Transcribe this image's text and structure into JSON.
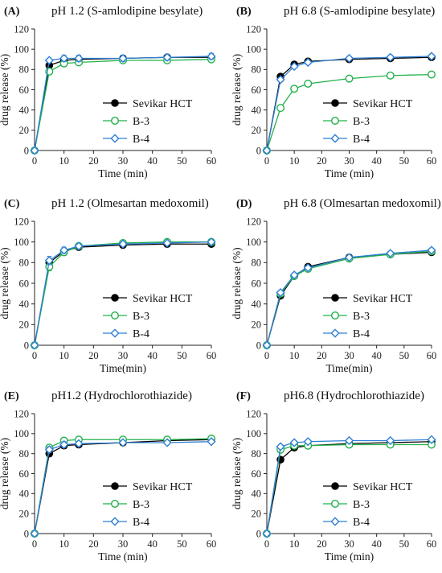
{
  "chart_data": [
    {
      "id": "A",
      "type": "line",
      "panel_label": "(A)",
      "title": "pH 1.2 (S-amlodipine besylate)",
      "xlabel": "Time (min)",
      "ylabel": "drug release (%)",
      "xlim": [
        0,
        60
      ],
      "ylim": [
        0,
        120
      ],
      "xticks": [
        0,
        10,
        20,
        30,
        40,
        50,
        60
      ],
      "yticks": [
        0,
        20,
        40,
        60,
        80,
        100,
        120
      ],
      "x": [
        0,
        5,
        10,
        15,
        30,
        45,
        60
      ],
      "legend_position": "bottom-right",
      "series": [
        {
          "name": "Sevikar HCT",
          "values": [
            0,
            84,
            89,
            90,
            91,
            92,
            92
          ],
          "err": [
            0,
            3,
            3,
            3,
            3,
            3,
            3
          ]
        },
        {
          "name": "B-3",
          "values": [
            0,
            78,
            86,
            87,
            89,
            89,
            90
          ],
          "err": [
            0,
            3,
            3,
            2,
            2,
            2,
            2
          ]
        },
        {
          "name": "B-4",
          "values": [
            0,
            89,
            91,
            91,
            91,
            92,
            93
          ],
          "err": [
            0,
            2,
            3,
            3,
            3,
            3,
            3
          ]
        }
      ]
    },
    {
      "id": "B",
      "type": "line",
      "panel_label": "(B)",
      "title": "pH 6.8 (S-amlodipine besylate)",
      "xlabel": "Time (min)",
      "ylabel": "drug release (%)",
      "xlim": [
        0,
        60
      ],
      "ylim": [
        0,
        120
      ],
      "xticks": [
        0,
        10,
        20,
        30,
        40,
        50,
        60
      ],
      "yticks": [
        0,
        20,
        40,
        60,
        80,
        100,
        120
      ],
      "x": [
        0,
        5,
        10,
        15,
        30,
        45,
        60
      ],
      "legend_position": "bottom-right",
      "series": [
        {
          "name": "Sevikar HCT",
          "values": [
            0,
            73,
            85,
            88,
            90,
            91,
            92
          ],
          "err": [
            0,
            2,
            2,
            2,
            2,
            2,
            2
          ]
        },
        {
          "name": "B-3",
          "values": [
            0,
            42,
            61,
            66,
            71,
            74,
            75
          ],
          "err": [
            0,
            2,
            2,
            2,
            2,
            2,
            2
          ]
        },
        {
          "name": "B-4",
          "values": [
            0,
            70,
            83,
            87,
            91,
            92,
            93
          ],
          "err": [
            0,
            2,
            2,
            2,
            2,
            2,
            2
          ]
        }
      ]
    },
    {
      "id": "C",
      "type": "line",
      "panel_label": "(C)",
      "title": "pH 1.2 (Olmesartan medoxomil)",
      "xlabel": "Time(min)",
      "ylabel": "drug release (%)",
      "xlim": [
        0,
        60
      ],
      "ylim": [
        0,
        120
      ],
      "xticks": [
        0,
        10,
        20,
        30,
        40,
        50,
        60
      ],
      "yticks": [
        0,
        20,
        40,
        60,
        80,
        100,
        120
      ],
      "x": [
        0,
        5,
        10,
        15,
        30,
        45,
        60
      ],
      "legend_position": "bottom-right",
      "series": [
        {
          "name": "Sevikar HCT",
          "values": [
            0,
            80,
            91,
            95,
            97,
            98,
            98
          ],
          "err": [
            0,
            4,
            3,
            2,
            2,
            2,
            2
          ]
        },
        {
          "name": "B-3",
          "values": [
            0,
            76,
            90,
            96,
            99,
            100,
            100
          ],
          "err": [
            0,
            4,
            3,
            2,
            2,
            2,
            2
          ]
        },
        {
          "name": "B-4",
          "values": [
            0,
            82,
            92,
            96,
            98,
            99,
            100
          ],
          "err": [
            0,
            4,
            3,
            2,
            2,
            2,
            2
          ]
        }
      ]
    },
    {
      "id": "D",
      "type": "line",
      "panel_label": "(D)",
      "title": "pH 6.8 (Olmesartan medoxomil)",
      "xlabel": "Time(min)",
      "ylabel": "drug release (%)",
      "xlim": [
        0,
        60
      ],
      "ylim": [
        0,
        120
      ],
      "xticks": [
        0,
        10,
        20,
        30,
        40,
        50,
        60
      ],
      "yticks": [
        0,
        20,
        40,
        60,
        80,
        100,
        120
      ],
      "x": [
        0,
        5,
        10,
        15,
        30,
        45,
        60
      ],
      "legend_position": "bottom-right",
      "series": [
        {
          "name": "Sevikar HCT",
          "values": [
            0,
            48,
            67,
            76,
            85,
            88,
            90
          ],
          "err": [
            0,
            2,
            2,
            2,
            1,
            1,
            1
          ]
        },
        {
          "name": "B-3",
          "values": [
            0,
            50,
            67,
            74,
            84,
            88,
            91
          ],
          "err": [
            0,
            2,
            2,
            2,
            1,
            1,
            1
          ]
        },
        {
          "name": "B-4",
          "values": [
            0,
            51,
            68,
            75,
            85,
            89,
            92
          ],
          "err": [
            0,
            2,
            2,
            2,
            1,
            1,
            1
          ]
        }
      ]
    },
    {
      "id": "E",
      "type": "line",
      "panel_label": "(E)",
      "title": "pH1.2 (Hydrochlorothiazide)",
      "xlabel": "Time (min)",
      "ylabel": "drug release (%)",
      "xlim": [
        0,
        60
      ],
      "ylim": [
        0,
        120
      ],
      "xticks": [
        0,
        10,
        20,
        30,
        40,
        50,
        60
      ],
      "yticks": [
        0,
        20,
        40,
        60,
        80,
        100,
        120
      ],
      "x": [
        0,
        5,
        10,
        15,
        30,
        45,
        60
      ],
      "legend_position": "bottom-right",
      "series": [
        {
          "name": "Sevikar HCT",
          "values": [
            0,
            80,
            88,
            89,
            91,
            93,
            94
          ],
          "err": [
            0,
            3,
            3,
            2,
            2,
            2,
            2
          ]
        },
        {
          "name": "B-3",
          "values": [
            0,
            86,
            93,
            94,
            94,
            94,
            95
          ],
          "err": [
            0,
            2,
            2,
            2,
            2,
            2,
            2
          ]
        },
        {
          "name": "B-4",
          "values": [
            0,
            84,
            89,
            90,
            91,
            91,
            92
          ],
          "err": [
            0,
            3,
            3,
            2,
            2,
            2,
            2
          ]
        }
      ]
    },
    {
      "id": "F",
      "type": "line",
      "panel_label": "(F)",
      "title": "pH6.8 (Hydrochlorothiazide)",
      "xlabel": "Time (min)",
      "ylabel": "drug release (%)",
      "xlim": [
        0,
        60
      ],
      "ylim": [
        0,
        120
      ],
      "xticks": [
        0,
        10,
        20,
        30,
        40,
        50,
        60
      ],
      "yticks": [
        0,
        20,
        40,
        60,
        80,
        100,
        120
      ],
      "x": [
        0,
        5,
        10,
        15,
        30,
        45,
        60
      ],
      "legend_position": "bottom-right",
      "series": [
        {
          "name": "Sevikar HCT",
          "values": [
            0,
            74,
            86,
            88,
            90,
            91,
            92
          ],
          "err": [
            0,
            2,
            2,
            2,
            2,
            2,
            2
          ]
        },
        {
          "name": "B-3",
          "values": [
            0,
            84,
            88,
            88,
            89,
            89,
            89
          ],
          "err": [
            0,
            2,
            2,
            2,
            2,
            2,
            2
          ]
        },
        {
          "name": "B-4",
          "values": [
            0,
            87,
            91,
            92,
            93,
            93,
            94
          ],
          "err": [
            0,
            2,
            2,
            2,
            2,
            2,
            2
          ]
        }
      ]
    }
  ],
  "series_style": {
    "Sevikar HCT": {
      "color": "#000000",
      "marker": "filled-circle"
    },
    "B-3": {
      "color": "#22b14c",
      "marker": "open-circle"
    },
    "B-4": {
      "color": "#2f7fd6",
      "marker": "open-diamond"
    }
  }
}
